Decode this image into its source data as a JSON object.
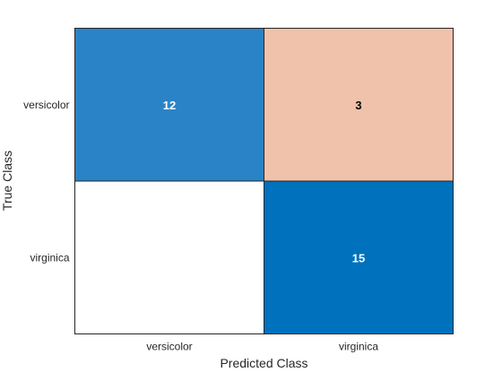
{
  "chart_data": {
    "type": "heatmap",
    "title": "",
    "xlabel": "Predicted Class",
    "ylabel": "True Class",
    "x_categories": [
      "versicolor",
      "virginica"
    ],
    "y_categories": [
      "versicolor",
      "virginica"
    ],
    "values": [
      [
        12,
        3
      ],
      [
        0,
        15
      ]
    ],
    "cell_labels": [
      [
        "12",
        "3"
      ],
      [
        "",
        "15"
      ]
    ],
    "cell_colors": [
      [
        "#2a83c6",
        "#f0c2ab"
      ],
      [
        "#ffffff",
        "#0072bd"
      ]
    ],
    "cell_text_colors": [
      [
        "#ffffff",
        "#000000"
      ],
      [
        "#000000",
        "#ffffff"
      ]
    ],
    "grid": true,
    "legend": "none"
  }
}
